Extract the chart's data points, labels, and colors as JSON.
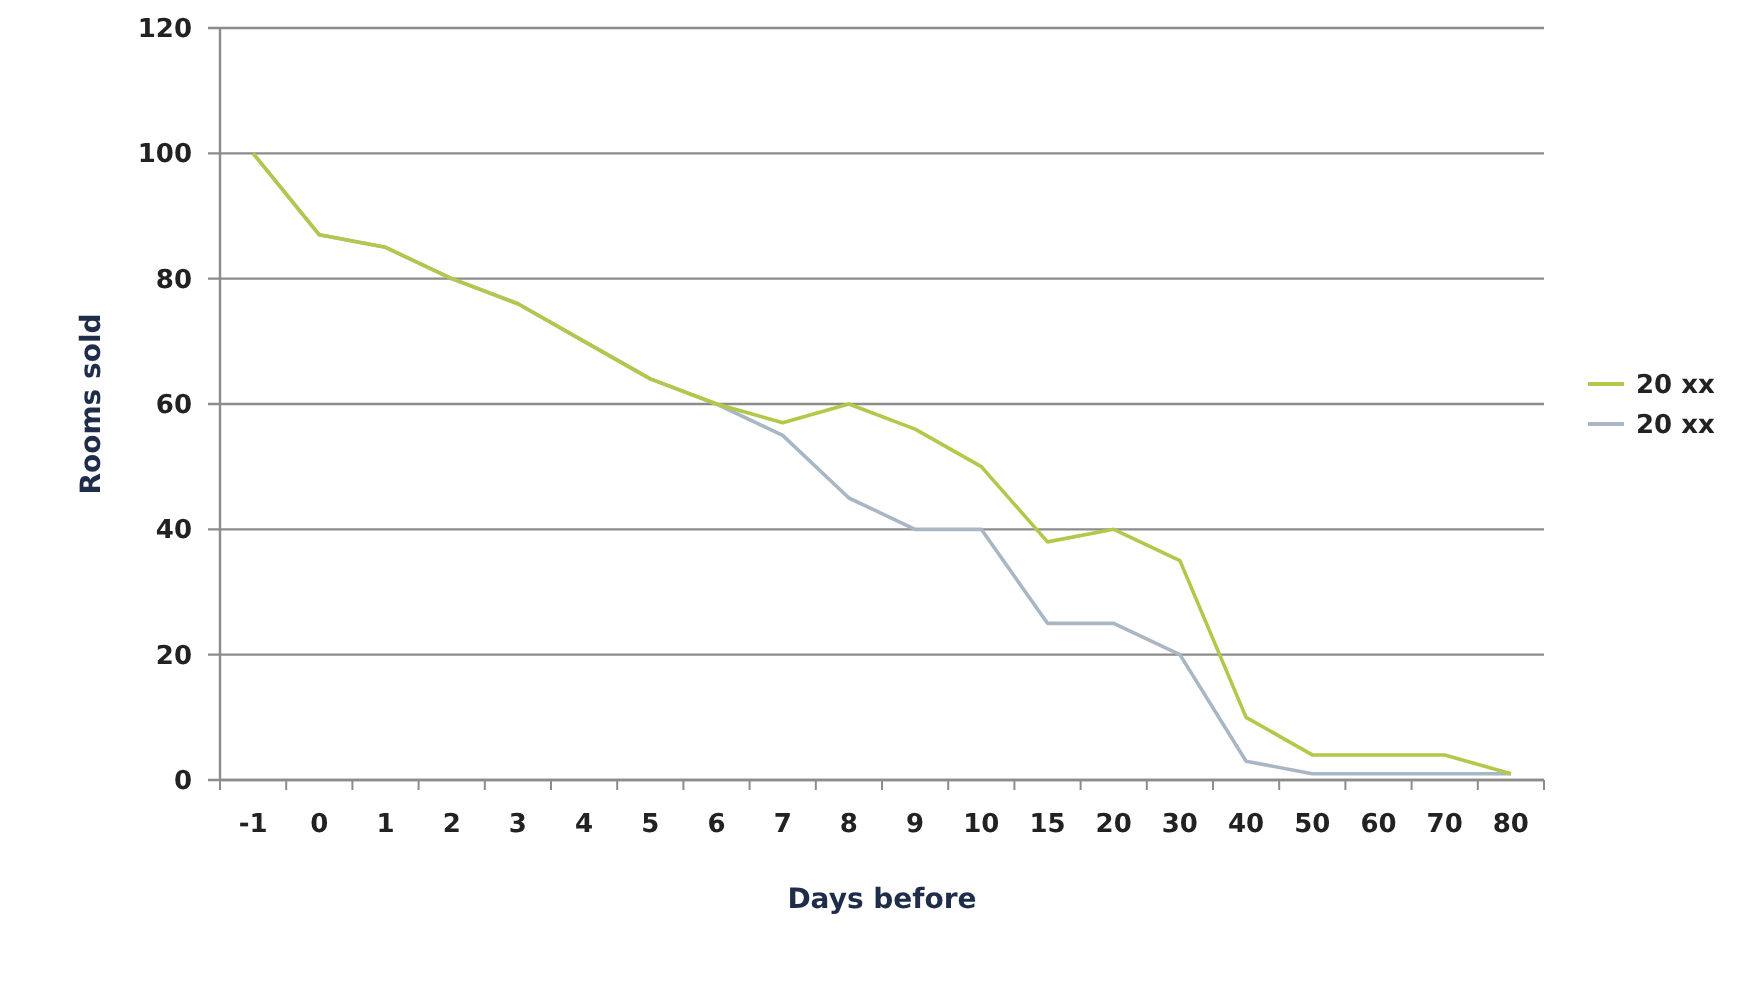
{
  "chart_data": {
    "type": "line",
    "xlabel": "Days before",
    "ylabel": "Rooms sold",
    "categories": [
      "-1",
      "0",
      "1",
      "2",
      "3",
      "4",
      "5",
      "6",
      "7",
      "8",
      "9",
      "10",
      "15",
      "20",
      "30",
      "40",
      "50",
      "60",
      "70",
      "80"
    ],
    "series": [
      {
        "name": "20 xx",
        "color": "#b3c84a",
        "values": [
          100,
          87,
          85,
          80,
          76,
          70,
          64,
          60,
          57,
          60,
          56,
          50,
          38,
          40,
          35,
          10,
          4,
          4,
          4,
          1
        ]
      },
      {
        "name": "20 xx",
        "color": "#a9b6c4",
        "values": [
          100,
          87,
          85,
          80,
          76,
          70,
          64,
          60,
          55,
          45,
          40,
          40,
          25,
          25,
          20,
          3,
          1,
          1,
          1,
          1
        ]
      }
    ],
    "ylim": [
      0,
      120
    ],
    "yticks": [
      0,
      20,
      40,
      60,
      80,
      100,
      120
    ],
    "grid": "y",
    "legend": "right",
    "marker": "none",
    "line_style": "solid"
  }
}
